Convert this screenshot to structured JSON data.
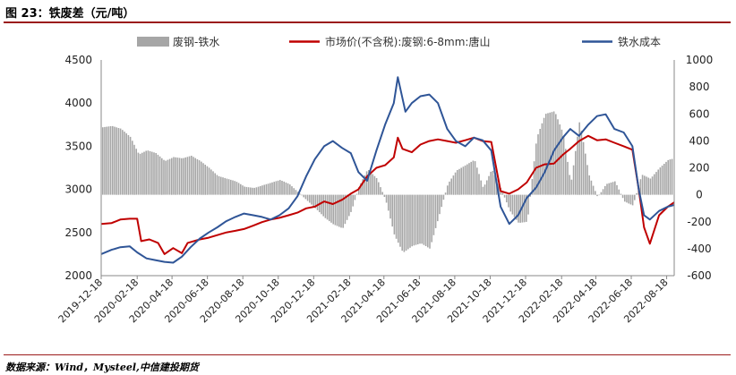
{
  "header": {
    "title": "图 23：铁废差（元/吨）"
  },
  "footer": {
    "source": "数据来源：Wind，Mysteel,中信建投期货"
  },
  "chart_data": {
    "type": "line",
    "title": "铁废差（元/吨）",
    "grid": false,
    "legend_position": "top",
    "x_tick_labels": [
      "2019-12-18",
      "2020-02-18",
      "2020-04-18",
      "2020-06-18",
      "2020-08-18",
      "2020-10-18",
      "2020-12-18",
      "2021-02-18",
      "2021-04-18",
      "2021-06-18",
      "2021-08-18",
      "2021-10-18",
      "2021-12-18",
      "2022-02-18",
      "2022-04-18",
      "2022-06-18",
      "2022-08-18"
    ],
    "x_range": [
      "2019-12-18",
      "2022-08-31"
    ],
    "left_axis": {
      "range": [
        2000,
        4500
      ],
      "ticks": [
        2000,
        2500,
        3000,
        3500,
        4000,
        4500
      ]
    },
    "right_axis": {
      "range": [
        -600,
        1000
      ],
      "ticks": [
        -600,
        -400,
        -200,
        0,
        200,
        400,
        600,
        800,
        1000
      ]
    },
    "series": [
      {
        "name": "废钢-铁水",
        "type": "bar",
        "axis": "right",
        "color": "#a6a6a6",
        "points": [
          [
            "2019-12-18",
            500
          ],
          [
            "2020-01-05",
            510
          ],
          [
            "2020-01-20",
            490
          ],
          [
            "2020-02-05",
            430
          ],
          [
            "2020-02-20",
            300
          ],
          [
            "2020-03-05",
            330
          ],
          [
            "2020-03-20",
            310
          ],
          [
            "2020-04-05",
            250
          ],
          [
            "2020-04-20",
            280
          ],
          [
            "2020-05-05",
            270
          ],
          [
            "2020-05-20",
            290
          ],
          [
            "2020-06-05",
            250
          ],
          [
            "2020-06-20",
            200
          ],
          [
            "2020-07-05",
            140
          ],
          [
            "2020-07-20",
            120
          ],
          [
            "2020-08-05",
            100
          ],
          [
            "2020-08-20",
            60
          ],
          [
            "2020-09-05",
            50
          ],
          [
            "2020-09-20",
            70
          ],
          [
            "2020-10-05",
            90
          ],
          [
            "2020-10-20",
            110
          ],
          [
            "2020-11-05",
            80
          ],
          [
            "2020-11-20",
            20
          ],
          [
            "2020-12-05",
            -40
          ],
          [
            "2020-12-20",
            -100
          ],
          [
            "2021-01-05",
            -170
          ],
          [
            "2021-01-20",
            -220
          ],
          [
            "2021-02-05",
            -250
          ],
          [
            "2021-02-20",
            -120
          ],
          [
            "2021-03-05",
            60
          ],
          [
            "2021-03-20",
            190
          ],
          [
            "2021-04-05",
            120
          ],
          [
            "2021-04-20",
            -40
          ],
          [
            "2021-05-05",
            -300
          ],
          [
            "2021-05-20",
            -430
          ],
          [
            "2021-06-05",
            -380
          ],
          [
            "2021-06-20",
            -360
          ],
          [
            "2021-07-05",
            -400
          ],
          [
            "2021-07-20",
            -170
          ],
          [
            "2021-08-05",
            80
          ],
          [
            "2021-08-20",
            180
          ],
          [
            "2021-09-05",
            220
          ],
          [
            "2021-09-20",
            260
          ],
          [
            "2021-10-05",
            50
          ],
          [
            "2021-10-20",
            190
          ],
          [
            "2021-11-05",
            40
          ],
          [
            "2021-11-20",
            -120
          ],
          [
            "2021-12-05",
            -210
          ],
          [
            "2021-12-20",
            -200
          ],
          [
            "2022-01-05",
            420
          ],
          [
            "2022-01-20",
            600
          ],
          [
            "2022-02-05",
            620
          ],
          [
            "2022-02-20",
            450
          ],
          [
            "2022-03-05",
            80
          ],
          [
            "2022-03-20",
            550
          ],
          [
            "2022-04-05",
            150
          ],
          [
            "2022-04-20",
            -20
          ],
          [
            "2022-05-05",
            80
          ],
          [
            "2022-05-20",
            100
          ],
          [
            "2022-06-05",
            -50
          ],
          [
            "2022-06-20",
            -80
          ],
          [
            "2022-07-05",
            150
          ],
          [
            "2022-07-20",
            120
          ],
          [
            "2022-08-05",
            200
          ],
          [
            "2022-08-20",
            260
          ],
          [
            "2022-08-31",
            270
          ]
        ]
      },
      {
        "name": "市场价(不含税):废钢:6-8mm:唐山",
        "type": "line",
        "axis": "left",
        "color": "#c00000",
        "points": [
          [
            "2019-12-18",
            2600
          ],
          [
            "2020-01-05",
            2610
          ],
          [
            "2020-01-20",
            2650
          ],
          [
            "2020-02-05",
            2660
          ],
          [
            "2020-02-18",
            2660
          ],
          [
            "2020-02-25",
            2400
          ],
          [
            "2020-03-10",
            2420
          ],
          [
            "2020-03-25",
            2380
          ],
          [
            "2020-04-05",
            2250
          ],
          [
            "2020-04-20",
            2320
          ],
          [
            "2020-05-05",
            2260
          ],
          [
            "2020-05-15",
            2380
          ],
          [
            "2020-06-05",
            2420
          ],
          [
            "2020-06-20",
            2440
          ],
          [
            "2020-07-05",
            2470
          ],
          [
            "2020-07-20",
            2500
          ],
          [
            "2020-08-05",
            2520
          ],
          [
            "2020-08-20",
            2540
          ],
          [
            "2020-09-05",
            2580
          ],
          [
            "2020-09-20",
            2620
          ],
          [
            "2020-10-05",
            2650
          ],
          [
            "2020-10-20",
            2670
          ],
          [
            "2020-11-05",
            2700
          ],
          [
            "2020-11-20",
            2730
          ],
          [
            "2020-12-05",
            2780
          ],
          [
            "2020-12-20",
            2800
          ],
          [
            "2021-01-05",
            2860
          ],
          [
            "2021-01-20",
            2830
          ],
          [
            "2021-02-05",
            2880
          ],
          [
            "2021-02-20",
            2950
          ],
          [
            "2021-03-05",
            3000
          ],
          [
            "2021-03-20",
            3150
          ],
          [
            "2021-04-05",
            3250
          ],
          [
            "2021-04-20",
            3280
          ],
          [
            "2021-05-05",
            3370
          ],
          [
            "2021-05-12",
            3600
          ],
          [
            "2021-05-20",
            3470
          ],
          [
            "2021-06-05",
            3430
          ],
          [
            "2021-06-20",
            3520
          ],
          [
            "2021-07-05",
            3560
          ],
          [
            "2021-07-20",
            3580
          ],
          [
            "2021-08-05",
            3560
          ],
          [
            "2021-08-20",
            3540
          ],
          [
            "2021-09-05",
            3570
          ],
          [
            "2021-09-20",
            3600
          ],
          [
            "2021-10-05",
            3560
          ],
          [
            "2021-10-20",
            3550
          ],
          [
            "2021-11-05",
            2980
          ],
          [
            "2021-11-20",
            2950
          ],
          [
            "2021-12-05",
            3000
          ],
          [
            "2021-12-20",
            3080
          ],
          [
            "2022-01-05",
            3250
          ],
          [
            "2022-01-20",
            3290
          ],
          [
            "2022-02-05",
            3300
          ],
          [
            "2022-02-20",
            3400
          ],
          [
            "2022-03-05",
            3470
          ],
          [
            "2022-03-20",
            3560
          ],
          [
            "2022-04-05",
            3620
          ],
          [
            "2022-04-20",
            3570
          ],
          [
            "2022-05-05",
            3580
          ],
          [
            "2022-05-20",
            3540
          ],
          [
            "2022-06-05",
            3500
          ],
          [
            "2022-06-20",
            3460
          ],
          [
            "2022-07-01",
            3000
          ],
          [
            "2022-07-10",
            2560
          ],
          [
            "2022-07-20",
            2370
          ],
          [
            "2022-08-05",
            2700
          ],
          [
            "2022-08-20",
            2800
          ],
          [
            "2022-08-31",
            2850
          ]
        ]
      },
      {
        "name": "铁水成本",
        "type": "line",
        "axis": "left",
        "color": "#2f5597",
        "points": [
          [
            "2019-12-18",
            2250
          ],
          [
            "2020-01-05",
            2300
          ],
          [
            "2020-01-20",
            2330
          ],
          [
            "2020-02-05",
            2340
          ],
          [
            "2020-02-18",
            2270
          ],
          [
            "2020-03-05",
            2200
          ],
          [
            "2020-03-20",
            2180
          ],
          [
            "2020-04-05",
            2160
          ],
          [
            "2020-04-20",
            2150
          ],
          [
            "2020-05-05",
            2220
          ],
          [
            "2020-05-20",
            2330
          ],
          [
            "2020-06-05",
            2430
          ],
          [
            "2020-06-20",
            2500
          ],
          [
            "2020-07-05",
            2560
          ],
          [
            "2020-07-20",
            2630
          ],
          [
            "2020-08-05",
            2680
          ],
          [
            "2020-08-20",
            2720
          ],
          [
            "2020-09-05",
            2700
          ],
          [
            "2020-09-20",
            2680
          ],
          [
            "2020-10-05",
            2650
          ],
          [
            "2020-10-20",
            2700
          ],
          [
            "2020-11-05",
            2780
          ],
          [
            "2020-11-20",
            2920
          ],
          [
            "2020-12-05",
            3150
          ],
          [
            "2020-12-20",
            3350
          ],
          [
            "2021-01-05",
            3500
          ],
          [
            "2021-01-20",
            3560
          ],
          [
            "2021-02-05",
            3480
          ],
          [
            "2021-02-20",
            3420
          ],
          [
            "2021-03-05",
            3200
          ],
          [
            "2021-03-20",
            3100
          ],
          [
            "2021-04-05",
            3450
          ],
          [
            "2021-04-20",
            3750
          ],
          [
            "2021-05-05",
            4000
          ],
          [
            "2021-05-12",
            4300
          ],
          [
            "2021-05-25",
            3900
          ],
          [
            "2021-06-05",
            4000
          ],
          [
            "2021-06-20",
            4080
          ],
          [
            "2021-07-05",
            4100
          ],
          [
            "2021-07-20",
            4000
          ],
          [
            "2021-08-05",
            3700
          ],
          [
            "2021-08-20",
            3560
          ],
          [
            "2021-09-05",
            3500
          ],
          [
            "2021-09-20",
            3600
          ],
          [
            "2021-10-05",
            3570
          ],
          [
            "2021-10-20",
            3450
          ],
          [
            "2021-11-05",
            2800
          ],
          [
            "2021-11-20",
            2600
          ],
          [
            "2021-12-05",
            2700
          ],
          [
            "2021-12-20",
            2900
          ],
          [
            "2022-01-05",
            3020
          ],
          [
            "2022-01-20",
            3200
          ],
          [
            "2022-02-05",
            3450
          ],
          [
            "2022-02-20",
            3600
          ],
          [
            "2022-03-05",
            3700
          ],
          [
            "2022-03-20",
            3620
          ],
          [
            "2022-04-05",
            3750
          ],
          [
            "2022-04-20",
            3850
          ],
          [
            "2022-05-05",
            3870
          ],
          [
            "2022-05-20",
            3700
          ],
          [
            "2022-06-05",
            3660
          ],
          [
            "2022-06-20",
            3500
          ],
          [
            "2022-07-01",
            3000
          ],
          [
            "2022-07-10",
            2700
          ],
          [
            "2022-07-20",
            2650
          ],
          [
            "2022-08-05",
            2750
          ],
          [
            "2022-08-20",
            2800
          ],
          [
            "2022-08-31",
            2820
          ]
        ]
      }
    ]
  }
}
